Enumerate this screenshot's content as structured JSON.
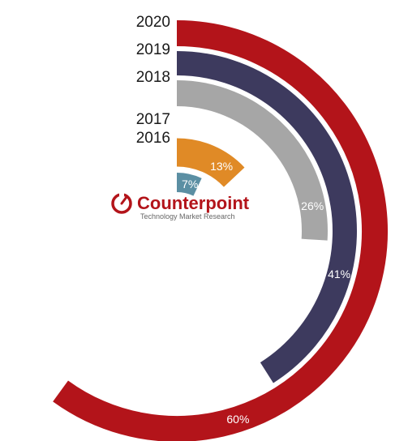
{
  "chart_data": {
    "type": "radial-bar",
    "title": "",
    "categories": [
      "2016",
      "2017",
      "2018",
      "2019",
      "2020"
    ],
    "values": [
      7,
      13,
      26,
      41,
      60
    ],
    "value_labels": [
      "7%",
      "13%",
      "26%",
      "41%",
      "60%"
    ],
    "unit": "%",
    "colors": [
      "#5b8fa3",
      "#e08a26",
      "#a6a6a6",
      "#3d3a5e",
      "#b3141a"
    ],
    "legend": "none"
  },
  "logo": {
    "name": "Counterpoint",
    "tagline": "Technology Market Research",
    "color": "#b3141a"
  }
}
